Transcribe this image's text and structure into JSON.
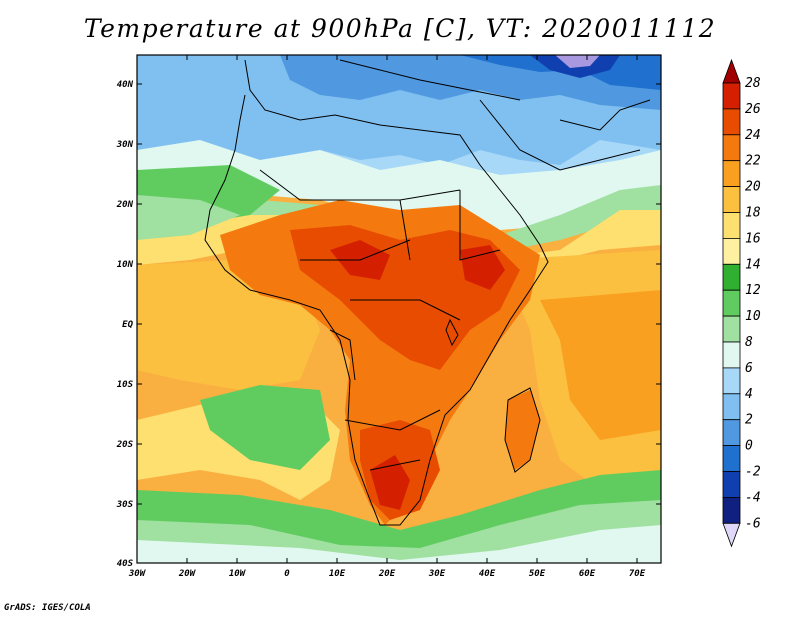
{
  "title": "Temperature at 900hPa [C], VT: 2020011112",
  "credit": "GrADS: IGES/COLA",
  "map": {
    "lon_range": [
      -30,
      75
    ],
    "lat_range": [
      -40,
      45
    ],
    "lon_ticks": [
      "30W",
      "20W",
      "10W",
      "0",
      "10E",
      "20E",
      "30E",
      "40E",
      "50E",
      "60E",
      "70E"
    ],
    "lat_ticks": [
      "40N",
      "30N",
      "20N",
      "10N",
      "EQ",
      "10S",
      "20S",
      "30S",
      "40S"
    ],
    "variable": "Temperature at 900hPa"
  },
  "colorbar": {
    "labels": [
      "28",
      "26",
      "24",
      "22",
      "20",
      "18",
      "16",
      "14",
      "12",
      "10",
      "8",
      "6",
      "4",
      "2",
      "0",
      "-2",
      "-4",
      "-6"
    ],
    "colors": [
      "#a00000",
      "#d42000",
      "#e84c00",
      "#f47a10",
      "#f9a020",
      "#fcc040",
      "#fde070",
      "#fdf0a0",
      "#30b030",
      "#60cc60",
      "#a0e0a0",
      "#e0f8f0",
      "#a8d8f8",
      "#80c0f0",
      "#5098e0",
      "#2070d0",
      "#1040b0",
      "#102080",
      "#e0d8f8"
    ]
  }
}
